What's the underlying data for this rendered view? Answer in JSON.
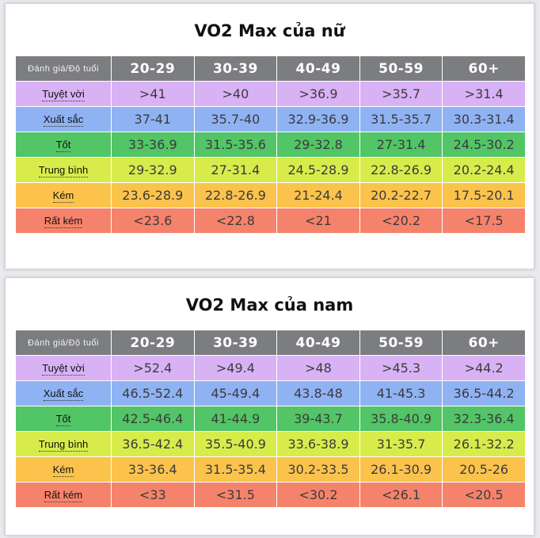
{
  "colors": {
    "header": "#7c7d80",
    "rows": [
      "#d8b2f5",
      "#8fb2f3",
      "#52c566",
      "#d7ec4b",
      "#fbc34c",
      "#f5836b"
    ]
  },
  "female": {
    "title": "VO2 Max của nữ",
    "corner": "Đánh giá/Độ tuổi",
    "ages": [
      "20-29",
      "30-39",
      "40-49",
      "50-59",
      "60+"
    ],
    "rows": [
      {
        "label": "Tuyệt vời",
        "values": [
          ">41",
          ">40",
          ">36.9",
          ">35.7",
          ">31.4"
        ]
      },
      {
        "label": "Xuất sắc",
        "values": [
          "37-41",
          "35.7-40",
          "32.9-36.9",
          "31.5-35.7",
          "30.3-31.4"
        ]
      },
      {
        "label": "Tốt",
        "values": [
          "33-36.9",
          "31.5-35.6",
          "29-32.8",
          "27-31.4",
          "24.5-30.2"
        ]
      },
      {
        "label": "Trung bình",
        "values": [
          "29-32.9",
          "27-31.4",
          "24.5-28.9",
          "22.8-26.9",
          "20.2-24.4"
        ]
      },
      {
        "label": "Kém",
        "values": [
          "23.6-28.9",
          "22.8-26.9",
          "21-24.4",
          "20.2-22.7",
          "17.5-20.1"
        ]
      },
      {
        "label": "Rất kém",
        "values": [
          "<23.6",
          "<22.8",
          "<21",
          "<20.2",
          "<17.5"
        ]
      }
    ]
  },
  "male": {
    "title": "VO2 Max của nam",
    "corner": "Đánh giá/Độ tuổi",
    "ages": [
      "20-29",
      "30-39",
      "40-49",
      "50-59",
      "60+"
    ],
    "rows": [
      {
        "label": "Tuyệt vời",
        "values": [
          ">52.4",
          ">49.4",
          ">48",
          ">45.3",
          ">44.2"
        ]
      },
      {
        "label": "Xuất sắc",
        "values": [
          "46.5-52.4",
          "45-49.4",
          "43.8-48",
          "41-45.3",
          "36.5-44.2"
        ]
      },
      {
        "label": "Tốt",
        "values": [
          "42.5-46.4",
          "41-44.9",
          "39-43.7",
          "35.8-40.9",
          "32.3-36.4"
        ]
      },
      {
        "label": "Trung bình",
        "values": [
          "36.5-42.4",
          "35.5-40.9",
          "33.6-38.9",
          "31-35.7",
          "26.1-32.2"
        ]
      },
      {
        "label": "Kém",
        "values": [
          "33-36.4",
          "31.5-35.4",
          "30.2-33.5",
          "26.1-30.9",
          "20.5-26"
        ]
      },
      {
        "label": "Rất kém",
        "values": [
          "<33",
          "<31.5",
          "<30.2",
          "<26.1",
          "<20.5"
        ]
      }
    ]
  }
}
